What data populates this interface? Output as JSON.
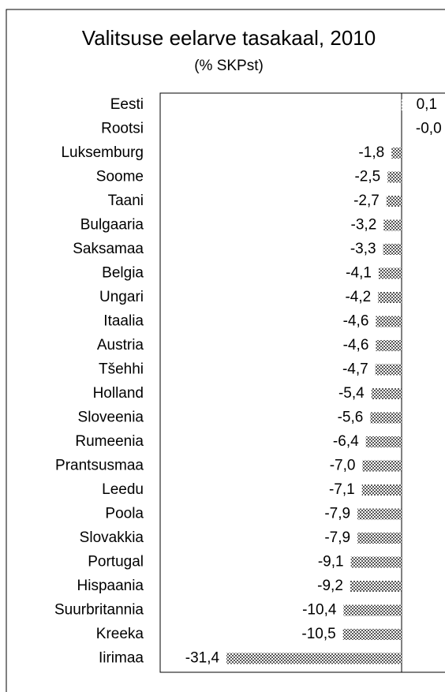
{
  "chart_data": {
    "type": "bar",
    "orientation": "horizontal",
    "title": "Valitsuse eelarve tasakaal, 2010",
    "subtitle": "(% SKPst)",
    "categories": [
      "Eesti",
      "Rootsi",
      "Luksemburg",
      "Soome",
      "Taani",
      "Bulgaaria",
      "Saksamaa",
      "Belgia",
      "Ungari",
      "Itaalia",
      "Austria",
      "Tšehhi",
      "Holland",
      "Sloveenia",
      "Rumeenia",
      "Prantsusmaa",
      "Leedu",
      "Poola",
      "Slovakkia",
      "Portugal",
      "Hispaania",
      "Suurbritannia",
      "Kreeka",
      "Iirimaa"
    ],
    "values": [
      0.1,
      -0.0,
      -1.8,
      -2.5,
      -2.7,
      -3.2,
      -3.3,
      -4.1,
      -4.2,
      -4.6,
      -4.6,
      -4.7,
      -5.4,
      -5.6,
      -6.4,
      -7.0,
      -7.1,
      -7.9,
      -7.9,
      -9.1,
      -9.2,
      -10.4,
      -10.5,
      -31.4
    ],
    "value_labels": [
      "0,1",
      "-0,0",
      "-1,8",
      "-2,5",
      "-2,7",
      "-3,2",
      "-3,3",
      "-4,1",
      "-4,2",
      "-4,6",
      "-4,6",
      "-4,7",
      "-5,4",
      "-5,6",
      "-6,4",
      "-7,0",
      "-7,1",
      "-7,9",
      "-7,9",
      "-9,1",
      "-9,2",
      "-10,4",
      "-10,5",
      "-31,4"
    ],
    "color": "#555555",
    "xlim": [
      -43.3,
      7.8
    ]
  }
}
